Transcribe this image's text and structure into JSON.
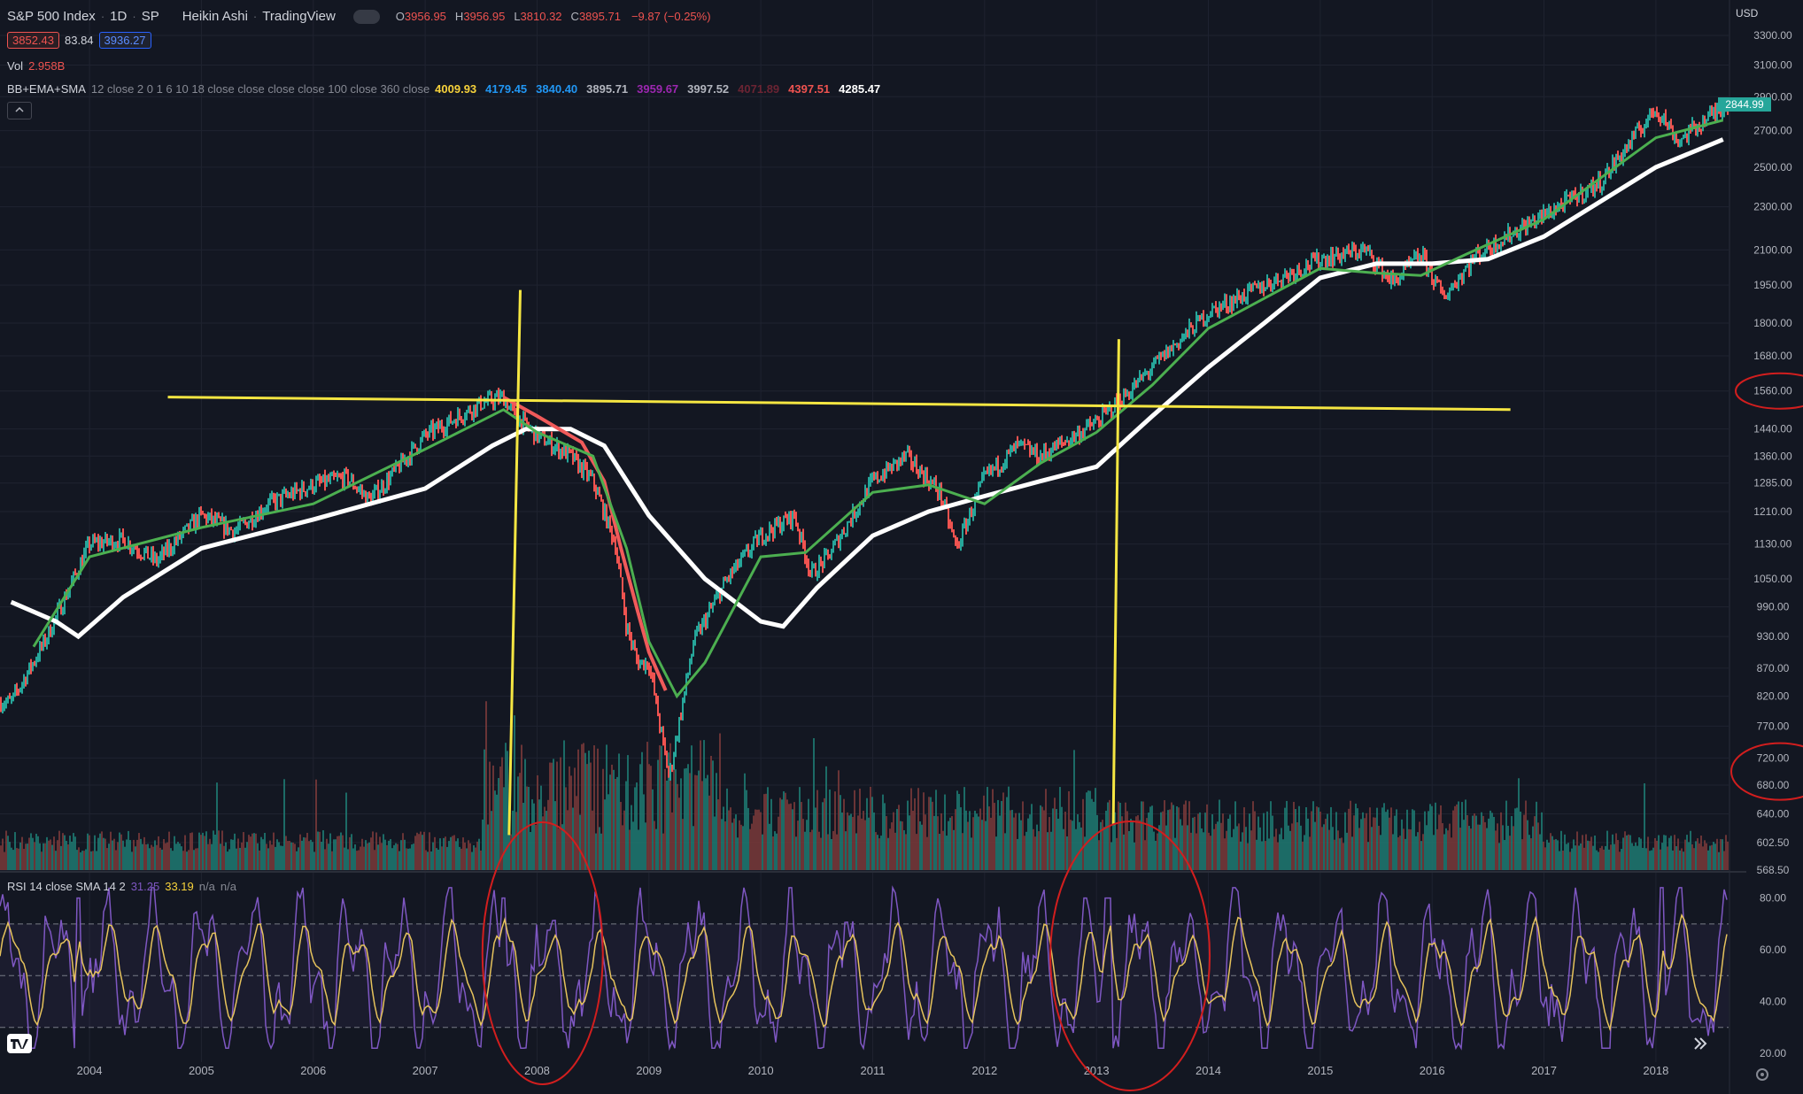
{
  "header": {
    "symbol": "S&P 500 Index",
    "interval": "1D",
    "exchange": "SP",
    "chart_style": "Heikin Ashi",
    "source": "TradingView",
    "ohlc": {
      "o_label": "O",
      "o": "3956.95",
      "h_label": "H",
      "h": "3956.95",
      "l_label": "L",
      "l": "3810.32",
      "c_label": "C",
      "c": "3895.71",
      "change": "−9.87 (−0.25%)"
    },
    "bid": "3852.43",
    "spread": "83.84",
    "ask": "3936.27",
    "vol_label": "Vol",
    "vol_value": "2.958B",
    "indicator_name": "BB+EMA+SMA",
    "indicator_params": "12 close 2 0 1 6 10 18 close close close close 100 close 360 close",
    "indicator_values": [
      {
        "v": "4009.93",
        "color": "#f7d23b"
      },
      {
        "v": "4179.45",
        "color": "#2196f3"
      },
      {
        "v": "3840.40",
        "color": "#2196f3"
      },
      {
        "v": "3895.71",
        "color": "#b2b5be"
      },
      {
        "v": "3959.67",
        "color": "#9c27b0"
      },
      {
        "v": "3997.52",
        "color": "#b2b5be"
      },
      {
        "v": "4071.89",
        "color": "#6b2433"
      },
      {
        "v": "4397.51",
        "color": "#ef5350"
      },
      {
        "v": "4285.47",
        "color": "#ffffff"
      }
    ],
    "collapse_icon": "chevron-up-icon",
    "rsi_label": "RSI 14 close SMA 14 2",
    "rsi_value1": "31.25",
    "rsi_value2": "33.19",
    "rsi_na1": "n/a",
    "rsi_na2": "n/a"
  },
  "price_axis": {
    "currency": "USD",
    "current_price": "2844.99"
  },
  "bottom_bar": {
    "logo_icon": "tradingview-logo-icon",
    "scroll_icon": "double-chevron-right-icon",
    "settings_icon": "gear-icon"
  },
  "colors": {
    "background": "#131722",
    "up": "#26a69a",
    "down": "#ef5350",
    "ema_fast": "#4caf50",
    "sma_slow": "#ffffff",
    "sma_red": "#f05a5a",
    "rsi": "#7e57c2",
    "rsi_ma": "#e6c35c",
    "annotation_yellow": "#f5e642",
    "annotation_red": "#d21e1e"
  },
  "chart_data": [
    {
      "type": "line",
      "name": "price",
      "x": [
        2003.3,
        2003.6,
        2004.0,
        2004.3,
        2004.6,
        2005.0,
        2005.3,
        2005.6,
        2006.0,
        2006.3,
        2006.5,
        2006.6,
        2007.0,
        2007.5,
        2007.7,
        2007.8,
        2008.0,
        2008.3,
        2008.5,
        2008.7,
        2008.8,
        2008.9,
        2009.0,
        2009.18,
        2009.4,
        2009.7,
        2010.0,
        2010.3,
        2010.45,
        2010.6,
        2011.0,
        2011.3,
        2011.6,
        2011.75,
        2012.0,
        2012.3,
        2012.5,
        2013.0,
        2013.3,
        2013.6,
        2014.0,
        2014.5,
        2015.0,
        2015.4,
        2015.65,
        2015.9,
        2016.1,
        2016.4,
        2016.7,
        2017.0,
        2017.5,
        2018.0,
        2018.06,
        2018.2,
        2018.6
      ],
      "y": [
        810,
        920,
        1130,
        1140,
        1090,
        1200,
        1160,
        1230,
        1280,
        1300,
        1240,
        1270,
        1420,
        1520,
        1540,
        1480,
        1420,
        1360,
        1290,
        1130,
        950,
        880,
        880,
        690,
        920,
        1050,
        1150,
        1200,
        1060,
        1100,
        1290,
        1360,
        1260,
        1120,
        1300,
        1390,
        1360,
        1460,
        1560,
        1680,
        1840,
        1950,
        2060,
        2100,
        1960,
        2080,
        1900,
        2080,
        2170,
        2260,
        2420,
        2830,
        2780,
        2640,
        2844.99
      ],
      "ylim": [
        568.5,
        3300
      ],
      "scale": "log",
      "xlabel": "",
      "ylabel": ""
    },
    {
      "type": "line",
      "name": "ema-green",
      "x": [
        2003.5,
        2004.0,
        2005.0,
        2006.0,
        2007.0,
        2007.7,
        2008.0,
        2008.5,
        2008.8,
        2009.0,
        2009.25,
        2009.5,
        2010.0,
        2010.4,
        2011.0,
        2011.5,
        2012.0,
        2012.5,
        2013.0,
        2013.5,
        2014.0,
        2015.0,
        2015.5,
        2015.9,
        2016.3,
        2017.0,
        2018.0,
        2018.6
      ],
      "y": [
        910,
        1100,
        1170,
        1230,
        1380,
        1500,
        1430,
        1360,
        1120,
        920,
        820,
        880,
        1100,
        1110,
        1260,
        1280,
        1230,
        1340,
        1430,
        1580,
        1780,
        2020,
        2000,
        1990,
        2080,
        2240,
        2660,
        2760
      ]
    },
    {
      "type": "line",
      "name": "sma-white",
      "x": [
        2003.3,
        2003.7,
        2003.9,
        2004.3,
        2005.0,
        2006.0,
        2007.0,
        2007.6,
        2007.9,
        2008.3,
        2008.6,
        2009.0,
        2009.5,
        2010.0,
        2010.2,
        2010.5,
        2011.0,
        2011.5,
        2012.0,
        2012.5,
        2013.0,
        2013.5,
        2014.0,
        2014.5,
        2015.0,
        2015.5,
        2016.0,
        2016.5,
        2017.0,
        2018.0,
        2018.6
      ],
      "y": [
        1000,
        960,
        930,
        1010,
        1120,
        1190,
        1270,
        1390,
        1440,
        1440,
        1390,
        1200,
        1050,
        960,
        950,
        1030,
        1150,
        1210,
        1250,
        1290,
        1330,
        1480,
        1640,
        1800,
        1980,
        2040,
        2040,
        2060,
        2160,
        2500,
        2650
      ]
    },
    {
      "type": "line",
      "name": "sma-red",
      "x": [
        2007.7,
        2008.0,
        2008.4,
        2008.6,
        2008.75,
        2008.9,
        2009.0,
        2009.15
      ],
      "y": [
        1540,
        1480,
        1400,
        1290,
        1120,
        980,
        900,
        830
      ]
    },
    {
      "type": "line",
      "name": "rsi",
      "x_range": [
        2003.2,
        2018.65
      ],
      "ylim": [
        20,
        85
      ],
      "bands": [
        30,
        70
      ],
      "rsi_highlights": [
        {
          "x": 2003.9,
          "y": 80
        },
        {
          "x": 2007.7,
          "y": 80
        },
        {
          "x": 2012.9,
          "y": 80
        },
        {
          "x": 2013.1,
          "y": 80
        },
        {
          "x": 2018.05,
          "y": 85
        }
      ]
    }
  ],
  "axes": {
    "y_ticks": [
      "3300.00",
      "3100.00",
      "2900.00",
      "2700.00",
      "2500.00",
      "2300.00",
      "2100.00",
      "1950.00",
      "1800.00",
      "1680.00",
      "1560.00",
      "1440.00",
      "1360.00",
      "1285.00",
      "1210.00",
      "1130.00",
      "1050.00",
      "990.00",
      "930.00",
      "870.00",
      "820.00",
      "770.00",
      "720.00",
      "680.00",
      "640.00",
      "602.50",
      "568.50"
    ],
    "y_tick_values": [
      3300,
      3100,
      2900,
      2700,
      2500,
      2300,
      2100,
      1950,
      1800,
      1680,
      1560,
      1440,
      1360,
      1285,
      1210,
      1130,
      1050,
      990,
      930,
      870,
      820,
      770,
      720,
      680,
      640,
      602.5,
      568.5
    ],
    "rsi_ticks": [
      "80.00",
      "60.00",
      "40.00",
      "20.00"
    ],
    "rsi_tick_values": [
      80,
      60,
      40,
      20
    ],
    "x_ticks": [
      "2004",
      "2005",
      "2006",
      "2007",
      "2008",
      "2009",
      "2010",
      "2011",
      "2012",
      "2013",
      "2014",
      "2015",
      "2016",
      "2017",
      "2018"
    ],
    "x_tick_values": [
      2004,
      2005,
      2006,
      2007,
      2008,
      2009,
      2010,
      2011,
      2012,
      2013,
      2014,
      2015,
      2016,
      2017,
      2018
    ]
  },
  "annotations": [
    {
      "kind": "line",
      "color": "yellow",
      "x1": 2004.7,
      "y1": 1540,
      "x2": 2016.7,
      "y2": 1500
    },
    {
      "kind": "line",
      "color": "yellow",
      "x1": 2007.85,
      "y1": 1930,
      "x2": 2007.75,
      "y2": 612
    },
    {
      "kind": "line",
      "color": "yellow",
      "x1": 2013.2,
      "y1": 1740,
      "x2": 2013.15,
      "y2": 625
    },
    {
      "kind": "circle",
      "color": "red",
      "region": "2008 volume + rsi"
    },
    {
      "kind": "circle",
      "color": "red",
      "region": "2013 volume + rsi"
    },
    {
      "kind": "circle",
      "color": "red",
      "region": "1560.00 axis label"
    },
    {
      "kind": "circle",
      "color": "red",
      "region": "720.00–680.00 axis labels"
    }
  ]
}
